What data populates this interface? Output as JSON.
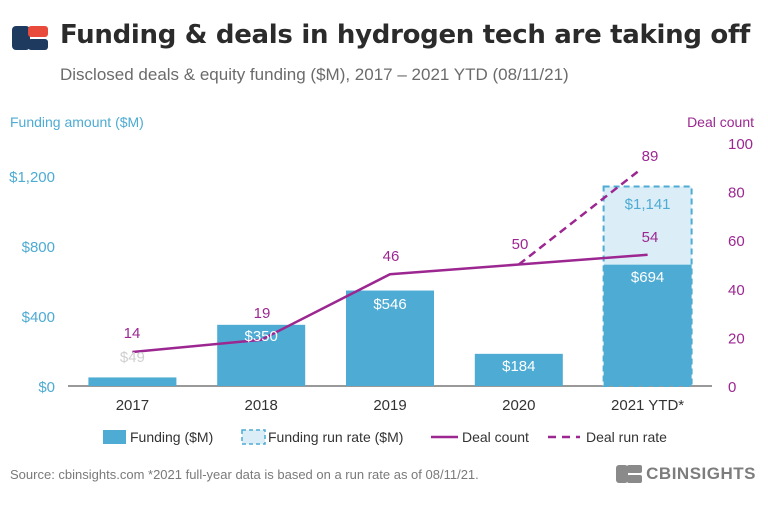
{
  "header": {
    "title": "Funding & deals in hydrogen tech are taking off",
    "subtitle": "Disclosed deals & equity funding ($M), 2017 – 2021 YTD (08/11/21)"
  },
  "footer": {
    "source": "Source: cbinsights.com  *2021 full-year data is based on a run rate as of 08/11/21.",
    "brand": "CBINSIGHTS"
  },
  "colors": {
    "bar": "#4eabd3",
    "run_rate_fill": "#dbeef8",
    "run_rate_border": "#4eabd3",
    "line": "#9c2791",
    "left_axis": "#4eabd3",
    "right_axis": "#9c2791",
    "logo_dark": "#1f3a5f",
    "logo_accent": "#e84b3c"
  },
  "chart_data": {
    "type": "bar",
    "categories": [
      "2017",
      "2018",
      "2019",
      "2020",
      "2021 YTD*"
    ],
    "ylabel": "Funding amount ($M)",
    "y2label": "Deal count",
    "ylim": [
      0,
      1390
    ],
    "y2lim": [
      0,
      100
    ],
    "yticks": [
      0,
      400,
      800,
      1200
    ],
    "ytick_labels": [
      "$0",
      "$400",
      "$800",
      "$1,200"
    ],
    "y2ticks": [
      0,
      20,
      40,
      60,
      80,
      100
    ],
    "series": [
      {
        "name": "Funding ($M)",
        "kind": "bar",
        "values": [
          49,
          350,
          546,
          184,
          694
        ],
        "labels": [
          "$49",
          "$350",
          "$546",
          "$184",
          "$694"
        ]
      },
      {
        "name": "Funding run rate ($M)",
        "kind": "bar-dashed",
        "index": 4,
        "value": 1141,
        "label": "$1,141"
      },
      {
        "name": "Deal count",
        "kind": "line",
        "axis": "right",
        "values": [
          14,
          19,
          46,
          50,
          54
        ],
        "labels": [
          "14",
          "19",
          "46",
          "50",
          "54"
        ]
      },
      {
        "name": "Deal run rate",
        "kind": "line-dashed",
        "axis": "right",
        "points": [
          {
            "index": 3,
            "value": 50
          },
          {
            "index": 4,
            "value": 89
          }
        ],
        "label": "89"
      }
    ],
    "legend_position": "bottom"
  }
}
